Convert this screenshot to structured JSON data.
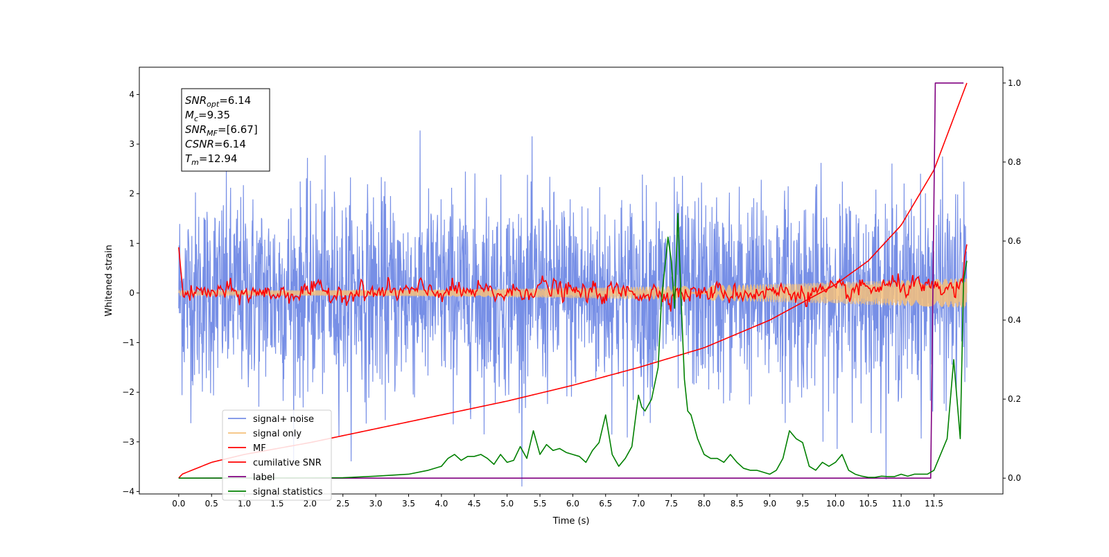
{
  "chart_data": {
    "type": "line",
    "xlabel": "Time (s)",
    "ylabel": "Whitened strain",
    "xlim": [
      -0.6,
      12.55
    ],
    "ylim_left": [
      -4.05,
      4.55
    ],
    "ylim_right": [
      -0.04,
      1.04
    ],
    "x_ticks": [
      "0.0",
      "0.5",
      "1.0",
      "1.5",
      "2.0",
      "2.5",
      "3.0",
      "3.5",
      "4.0",
      "4.5",
      "5.0",
      "5.5",
      "6.0",
      "6.5",
      "7.0",
      "7.5",
      "8.0",
      "8.5",
      "9.0",
      "9.5",
      "10.0",
      "10.5",
      "11.0",
      "11.5"
    ],
    "y_ticks_left": [
      "4",
      "3",
      "2",
      "1",
      "0",
      "−1",
      "−2",
      "−3",
      "−4"
    ],
    "y_ticks_right": [
      "1.0",
      "0.8",
      "0.6",
      "0.4",
      "0.2",
      "0.0"
    ],
    "annotation": [
      {
        "sym": "SNR",
        "sub": "opt",
        "val": "=6.14"
      },
      {
        "sym": "M",
        "sub": "c",
        "val": "=9.35"
      },
      {
        "sym": "SNR",
        "sub": "MF",
        "val": "=[6.67]"
      },
      {
        "sym": "CSNR",
        "sub": "",
        "val": "=6.14"
      },
      {
        "sym": "T",
        "sub": "m",
        "val": "=12.94"
      }
    ],
    "legend_position": "lower-left",
    "series": [
      {
        "name": "signal+ noise",
        "color": "#778fe6",
        "axis": "left",
        "noise_std": 1.0,
        "t_range": [
          0.0,
          12.0
        ]
      },
      {
        "name": "signal only",
        "color": "#f5c07a",
        "axis": "left",
        "amplitude_start": 0.05,
        "amplitude_end": 0.3,
        "t_range": [
          0.0,
          12.0
        ]
      },
      {
        "name": "MF",
        "color": "#ff0000",
        "axis": "left",
        "t_range": [
          0.0,
          12.0
        ],
        "x": [
          0.0,
          0.05,
          0.1,
          0.5,
          1.0,
          2.0,
          3.0,
          4.0,
          5.0,
          5.5,
          6.0,
          7.0,
          8.0,
          9.0,
          10.0,
          11.0,
          11.5,
          11.9,
          12.0
        ],
        "y": [
          0.92,
          0.2,
          -0.1,
          0.05,
          -0.05,
          0.05,
          0.0,
          0.1,
          -0.05,
          0.35,
          0.0,
          0.05,
          0.0,
          0.05,
          0.0,
          0.4,
          0.1,
          0.2,
          0.98
        ]
      },
      {
        "name": "cumilative SNR",
        "color": "#ff0000",
        "axis": "right",
        "x": [
          0.0,
          0.05,
          0.5,
          1.0,
          2.0,
          3.0,
          4.0,
          5.0,
          6.0,
          7.0,
          8.0,
          9.0,
          10.0,
          10.5,
          11.0,
          11.5,
          12.0
        ],
        "y": [
          0.0,
          0.01,
          0.04,
          0.06,
          0.09,
          0.125,
          0.16,
          0.195,
          0.235,
          0.28,
          0.33,
          0.4,
          0.49,
          0.55,
          0.64,
          0.78,
          1.0
        ]
      },
      {
        "name": "label",
        "color": "#800080",
        "axis": "right",
        "x": [
          0.0,
          11.45,
          11.52,
          11.95
        ],
        "y": [
          0.0,
          0.0,
          1.0,
          1.0
        ]
      },
      {
        "name": "signal statistics",
        "color": "#008000",
        "axis": "right",
        "x": [
          0.0,
          2.5,
          3.0,
          3.5,
          3.8,
          4.0,
          4.1,
          4.2,
          4.3,
          4.4,
          4.5,
          4.6,
          4.7,
          4.8,
          4.9,
          5.0,
          5.1,
          5.2,
          5.3,
          5.4,
          5.5,
          5.6,
          5.7,
          5.8,
          5.9,
          6.0,
          6.1,
          6.2,
          6.3,
          6.4,
          6.5,
          6.6,
          6.7,
          6.8,
          6.9,
          7.0,
          7.05,
          7.1,
          7.2,
          7.3,
          7.35,
          7.45,
          7.5,
          7.55,
          7.6,
          7.65,
          7.7,
          7.75,
          7.8,
          7.9,
          8.0,
          8.1,
          8.2,
          8.3,
          8.4,
          8.5,
          8.6,
          8.7,
          8.8,
          8.9,
          9.0,
          9.1,
          9.2,
          9.3,
          9.4,
          9.5,
          9.6,
          9.7,
          9.8,
          9.9,
          10.0,
          10.1,
          10.2,
          10.3,
          10.4,
          10.5,
          10.6,
          10.7,
          10.8,
          10.9,
          11.0,
          11.1,
          11.2,
          11.3,
          11.4,
          11.5,
          11.6,
          11.7,
          11.75,
          11.8,
          11.85,
          11.9,
          11.95,
          12.0
        ],
        "y": [
          0.0,
          0.001,
          0.005,
          0.01,
          0.02,
          0.03,
          0.05,
          0.06,
          0.045,
          0.055,
          0.055,
          0.06,
          0.05,
          0.035,
          0.06,
          0.04,
          0.045,
          0.08,
          0.05,
          0.12,
          0.06,
          0.085,
          0.07,
          0.075,
          0.065,
          0.06,
          0.055,
          0.04,
          0.07,
          0.09,
          0.16,
          0.06,
          0.03,
          0.05,
          0.08,
          0.21,
          0.18,
          0.17,
          0.2,
          0.28,
          0.45,
          0.61,
          0.55,
          0.43,
          0.67,
          0.45,
          0.25,
          0.17,
          0.16,
          0.1,
          0.06,
          0.05,
          0.05,
          0.04,
          0.06,
          0.04,
          0.025,
          0.02,
          0.02,
          0.015,
          0.01,
          0.02,
          0.05,
          0.12,
          0.1,
          0.09,
          0.03,
          0.02,
          0.04,
          0.03,
          0.04,
          0.06,
          0.02,
          0.01,
          0.005,
          0.002,
          0.002,
          0.005,
          0.004,
          0.004,
          0.01,
          0.005,
          0.01,
          0.01,
          0.01,
          0.02,
          0.06,
          0.1,
          0.2,
          0.3,
          0.2,
          0.1,
          0.5,
          0.55
        ]
      }
    ]
  }
}
